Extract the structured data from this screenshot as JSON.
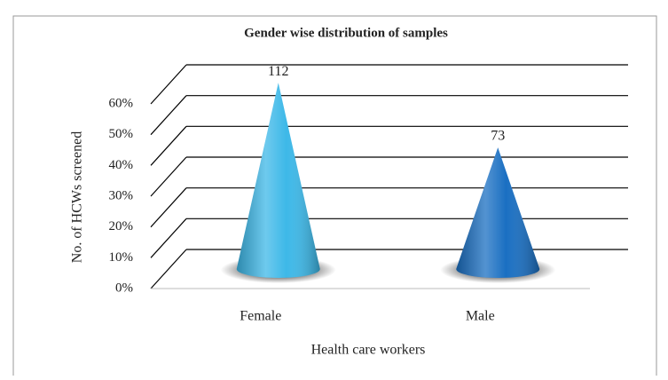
{
  "chart_data": {
    "type": "cone",
    "title": "Gender wise distribution of samples",
    "x_label": "Health care workers",
    "y_label": "No. of HCWs screened",
    "categories": [
      "Female",
      "Male"
    ],
    "series": [
      {
        "name": null,
        "colors": [
          "#3db8e8",
          "#1a6fc2"
        ],
        "values": [
          60.5,
          39.5
        ]
      }
    ],
    "data_labels": [
      "112",
      "73"
    ],
    "ylim": [
      0,
      60
    ],
    "yticks": [
      {
        "value": 0,
        "label": "0%"
      },
      {
        "value": 10,
        "label": "10%"
      },
      {
        "value": 20,
        "label": "20%"
      },
      {
        "value": 30,
        "label": "30%"
      },
      {
        "value": 40,
        "label": "40%"
      },
      {
        "value": 50,
        "label": "50%"
      },
      {
        "value": 60,
        "label": "60%"
      }
    ],
    "grid": true
  }
}
